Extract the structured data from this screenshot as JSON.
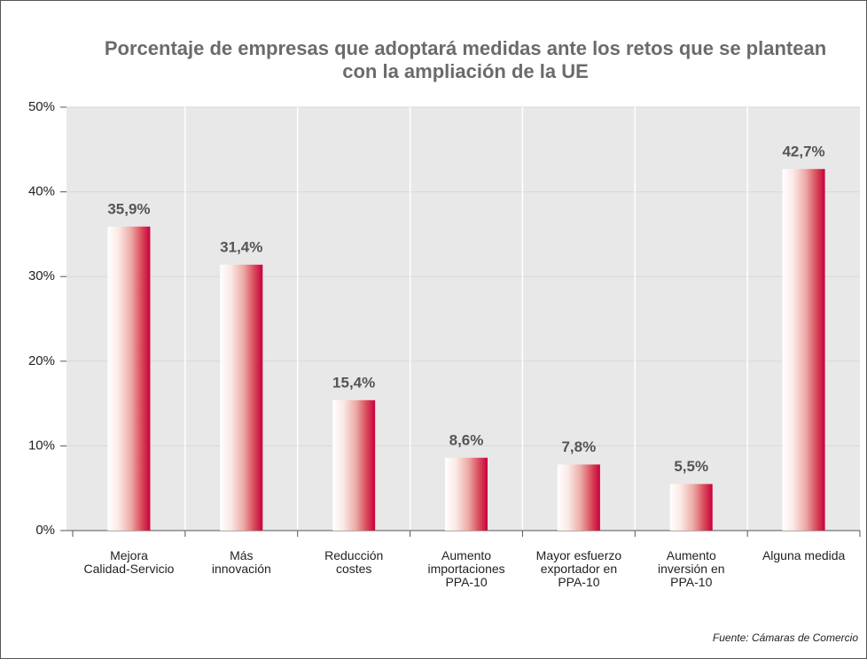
{
  "chart_data": {
    "type": "bar",
    "title": "Porcentaje de empresas que adoptará medidas ante los retos que se plantean\ncon la ampliación de la UE",
    "categories": [
      "Mejora\nCalidad-Servicio",
      "Más\ninnovación",
      "Reducción\ncostes",
      "Aumento\nimportaciones\nPPA-10",
      "Mayor esfuerzo\nexportador en\nPPA-10",
      "Aumento\ninversión en\nPPA-10",
      "Alguna medida"
    ],
    "values": [
      35.9,
      31.4,
      15.4,
      8.6,
      7.8,
      5.5,
      42.7
    ],
    "value_labels": [
      "35,9%",
      "31,4%",
      "15,4%",
      "8,6%",
      "7,8%",
      "5,5%",
      "42,7%"
    ],
    "color": "#c8003c",
    "ylim": [
      0,
      50
    ],
    "yticks": [
      {
        "value": 0,
        "label": "0%"
      },
      {
        "value": 10,
        "label": "10%"
      },
      {
        "value": 20,
        "label": "20%"
      },
      {
        "value": 30,
        "label": "30%"
      },
      {
        "value": 40,
        "label": "40%"
      },
      {
        "value": 50,
        "label": "50%"
      }
    ],
    "grid": true,
    "source": "Fuente: Cámaras de Comercio"
  }
}
